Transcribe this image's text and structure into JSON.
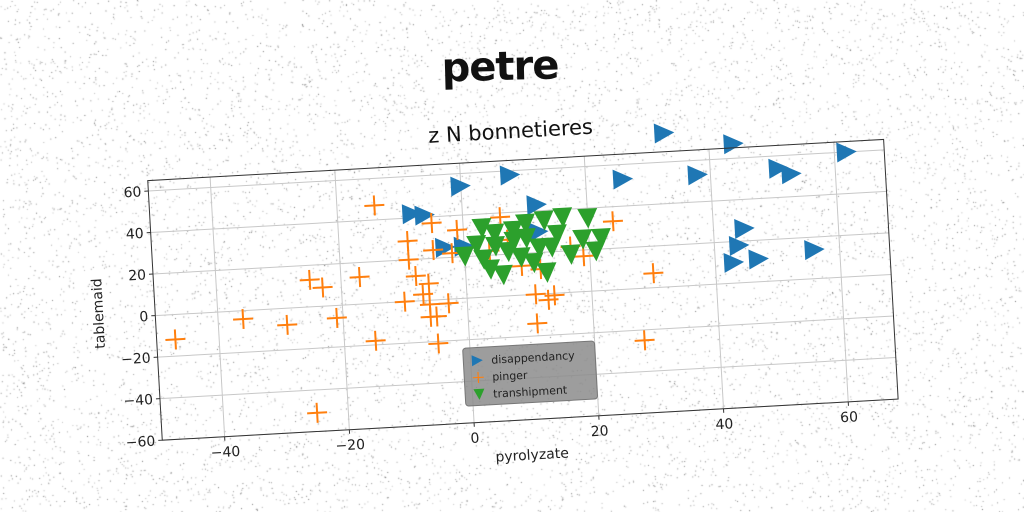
{
  "suptitle": "petre",
  "chart_data": {
    "type": "scatter",
    "title": "z N bonnetieres",
    "xlabel": "pyrolyzate",
    "ylabel": "tablemaid",
    "xlim": [
      -50,
      68
    ],
    "ylim": [
      -60,
      65
    ],
    "xticks": [
      -40,
      -20,
      0,
      20,
      40,
      60
    ],
    "yticks": [
      -60,
      -40,
      -20,
      0,
      20,
      40,
      60
    ],
    "grid": true,
    "legend_position": "lower-center",
    "series": [
      {
        "name": "disappendancy",
        "marker": "triangle-right",
        "color": "#1f77b4",
        "points": [
          [
            33,
            74
          ],
          [
            44,
            67
          ],
          [
            62,
            60
          ],
          [
            8,
            58
          ],
          [
            0,
            54
          ],
          [
            26,
            53
          ],
          [
            38,
            53
          ],
          [
            51,
            54
          ],
          [
            53,
            51
          ],
          [
            12,
            43
          ],
          [
            -8,
            42
          ],
          [
            -6,
            41
          ],
          [
            -3,
            25
          ],
          [
            0,
            25
          ],
          [
            12,
            30
          ],
          [
            45,
            26
          ],
          [
            44,
            18
          ],
          [
            43,
            10
          ],
          [
            47,
            11
          ],
          [
            56,
            14
          ]
        ]
      },
      {
        "name": "pinger",
        "marker": "plus",
        "color": "#ff7f0e",
        "points": [
          [
            -14,
            47
          ],
          [
            -5,
            37
          ],
          [
            -1,
            33
          ],
          [
            6,
            38
          ],
          [
            -9,
            29
          ],
          [
            -5,
            24
          ],
          [
            -9,
            20
          ],
          [
            -8,
            12
          ],
          [
            -6,
            8
          ],
          [
            -7,
            3
          ],
          [
            -10,
            0
          ],
          [
            -6,
            -2
          ],
          [
            -3,
            -2
          ],
          [
            -5,
            -8
          ],
          [
            -6,
            -8
          ],
          [
            -25,
            13
          ],
          [
            -23,
            9
          ],
          [
            -17,
            13
          ],
          [
            -2,
            22
          ],
          [
            4,
            22
          ],
          [
            9,
            14
          ],
          [
            12,
            12
          ],
          [
            17,
            22
          ],
          [
            24,
            33
          ],
          [
            30,
            7
          ],
          [
            11,
            0
          ],
          [
            13,
            -3
          ],
          [
            14,
            -1
          ],
          [
            11,
            -14
          ],
          [
            28,
            -25
          ],
          [
            -5,
            -21
          ],
          [
            -15,
            -18
          ],
          [
            -21,
            -6
          ],
          [
            -36,
            -4
          ],
          [
            -29,
            -8
          ],
          [
            -47,
            -12
          ],
          [
            -25,
            -51
          ],
          [
            19,
            17
          ],
          [
            7,
            27
          ]
        ]
      },
      {
        "name": "transhipment",
        "marker": "triangle-down",
        "color": "#2ca02c",
        "points": [
          [
            3,
            33
          ],
          [
            5,
            30
          ],
          [
            8,
            31
          ],
          [
            10,
            34
          ],
          [
            13,
            35
          ],
          [
            16,
            36
          ],
          [
            20,
            35
          ],
          [
            8,
            26
          ],
          [
            10,
            27
          ],
          [
            12,
            22
          ],
          [
            14,
            22
          ],
          [
            17,
            18
          ],
          [
            19,
            25
          ],
          [
            21,
            19
          ],
          [
            22,
            25
          ],
          [
            0,
            20
          ],
          [
            3,
            18
          ],
          [
            5,
            24
          ],
          [
            7,
            21
          ],
          [
            9,
            18
          ],
          [
            11,
            15
          ],
          [
            13,
            10
          ],
          [
            6,
            10
          ],
          [
            4,
            13
          ],
          [
            2,
            25
          ],
          [
            15,
            28
          ]
        ]
      }
    ]
  }
}
